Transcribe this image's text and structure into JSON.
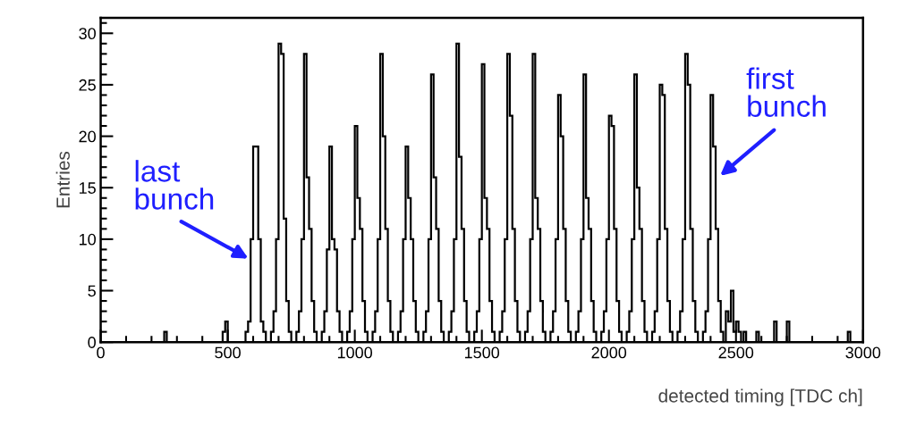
{
  "chart_data": {
    "type": "histogram",
    "xlabel": "detected timing [TDC ch]",
    "ylabel": "Entries",
    "xlim": [
      0,
      3000
    ],
    "xticks": [
      0,
      500,
      1000,
      1500,
      2000,
      2500,
      3000
    ],
    "ylim": [
      0,
      31.5
    ],
    "yticks": [
      0,
      5,
      10,
      15,
      20,
      25,
      30
    ],
    "grid": false,
    "color": "#000000",
    "bins": [
      0,
      250,
      260,
      480,
      490,
      500,
      560,
      570,
      580,
      590,
      600,
      610,
      620,
      630,
      640,
      650,
      660,
      670,
      680,
      690,
      700,
      710,
      720,
      730,
      740,
      750,
      760,
      770,
      780,
      790,
      800,
      810,
      820,
      830,
      840,
      850,
      860,
      870,
      880,
      890,
      900,
      910,
      920,
      930,
      940,
      950,
      960,
      970,
      980,
      990,
      1000,
      1010,
      1020,
      1030,
      1040,
      1050,
      1060,
      1070,
      1080,
      1090,
      1100,
      1110,
      1120,
      1130,
      1140,
      1150,
      1160,
      1170,
      1180,
      1190,
      1200,
      1210,
      1220,
      1230,
      1240,
      1250,
      1260,
      1270,
      1280,
      1290,
      1300,
      1310,
      1320,
      1330,
      1340,
      1350,
      1360,
      1370,
      1380,
      1390,
      1400,
      1410,
      1420,
      1430,
      1440,
      1450,
      1460,
      1470,
      1480,
      1490,
      1500,
      1510,
      1520,
      1530,
      1540,
      1550,
      1560,
      1570,
      1580,
      1590,
      1600,
      1610,
      1620,
      1630,
      1640,
      1650,
      1660,
      1670,
      1680,
      1690,
      1700,
      1710,
      1720,
      1730,
      1740,
      1750,
      1760,
      1770,
      1780,
      1790,
      1800,
      1810,
      1820,
      1830,
      1840,
      1850,
      1860,
      1870,
      1880,
      1890,
      1900,
      1910,
      1920,
      1930,
      1940,
      1950,
      1960,
      1970,
      1980,
      1990,
      2000,
      2010,
      2020,
      2030,
      2040,
      2050,
      2060,
      2070,
      2080,
      2090,
      2100,
      2110,
      2120,
      2130,
      2140,
      2150,
      2160,
      2170,
      2180,
      2190,
      2200,
      2210,
      2220,
      2230,
      2240,
      2250,
      2260,
      2270,
      2280,
      2290,
      2300,
      2310,
      2320,
      2330,
      2340,
      2350,
      2360,
      2370,
      2380,
      2390,
      2400,
      2410,
      2420,
      2430,
      2440,
      2450,
      2460,
      2470,
      2480,
      2490,
      2500,
      2510,
      2520,
      2530,
      2540,
      2550,
      2560,
      2580,
      2590,
      2650,
      2660,
      2700,
      2710,
      2940,
      2950,
      3000
    ],
    "values": [
      0,
      1,
      0,
      1,
      2,
      0,
      0,
      1,
      2,
      10,
      19,
      19,
      10,
      2,
      1,
      0,
      0,
      1,
      3,
      10,
      29,
      28,
      12,
      4,
      1,
      0,
      0,
      1,
      3,
      10,
      28,
      16,
      11,
      4,
      1,
      0,
      0,
      1,
      3,
      9,
      19,
      10,
      9,
      3,
      1,
      0,
      0,
      1,
      3,
      10,
      21,
      14,
      11,
      4,
      1,
      0,
      0,
      1,
      3,
      10,
      28,
      20,
      11,
      4,
      1,
      0,
      0,
      1,
      3,
      10,
      19,
      14,
      10,
      4,
      1,
      0,
      0,
      1,
      3,
      10,
      26,
      16,
      11,
      4,
      1,
      0,
      0,
      1,
      3,
      10,
      29,
      18,
      11,
      4,
      1,
      0,
      0,
      1,
      3,
      10,
      27,
      14,
      11,
      4,
      1,
      0,
      0,
      1,
      3,
      10,
      28,
      22,
      11,
      4,
      1,
      0,
      0,
      1,
      3,
      10,
      28,
      14,
      11,
      4,
      1,
      0,
      0,
      1,
      3,
      10,
      24,
      20,
      11,
      4,
      1,
      0,
      0,
      1,
      3,
      10,
      26,
      14,
      11,
      4,
      1,
      0,
      0,
      1,
      3,
      10,
      22,
      21,
      11,
      4,
      1,
      0,
      0,
      1,
      3,
      10,
      26,
      15,
      11,
      4,
      1,
      0,
      0,
      1,
      3,
      10,
      25,
      24,
      11,
      4,
      1,
      0,
      0,
      1,
      3,
      10,
      28,
      25,
      11,
      4,
      1,
      0,
      0,
      1,
      3,
      10,
      24,
      19,
      11,
      4,
      1,
      0,
      3,
      2,
      5,
      1,
      2,
      1,
      0,
      1,
      0,
      0,
      0,
      1,
      0,
      2,
      0,
      2,
      0,
      1,
      0
    ],
    "annotations": [
      {
        "text": "last bunch",
        "x": 590,
        "y": 8
      },
      {
        "text": "first bunch",
        "x": 2430,
        "y": 16
      }
    ]
  }
}
